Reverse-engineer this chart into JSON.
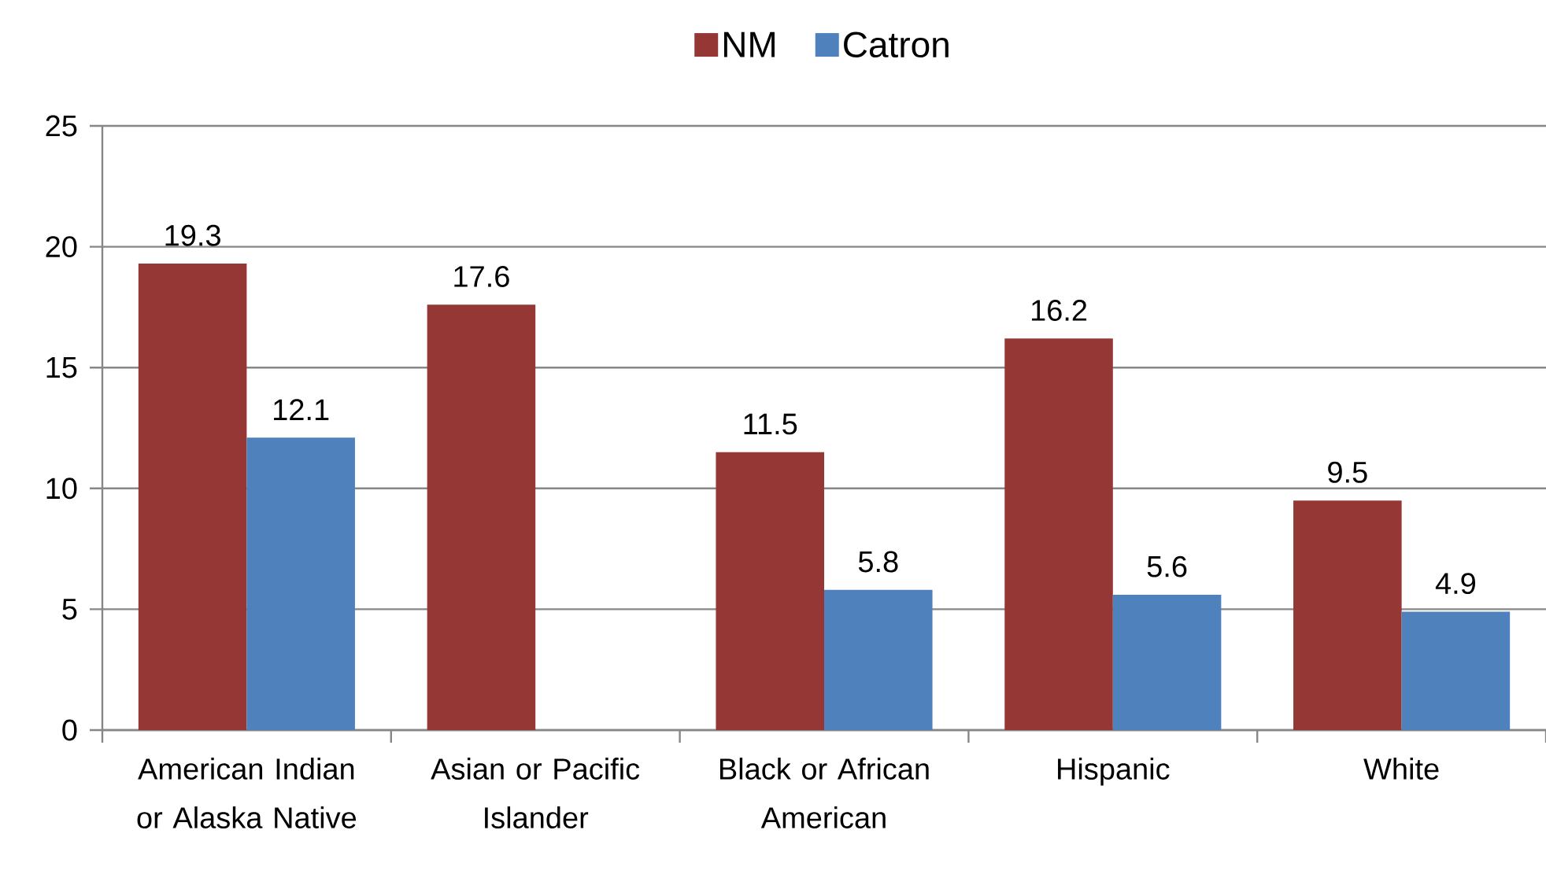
{
  "chart_data": {
    "type": "bar",
    "categories": [
      "American Indian or Alaska Native",
      "Asian or Pacific Islander",
      "Black or African American",
      "Hispanic",
      "White"
    ],
    "series": [
      {
        "name": "NM",
        "color": "#953735",
        "values": [
          19.3,
          17.6,
          11.5,
          16.2,
          9.5
        ]
      },
      {
        "name": "Catron",
        "color": "#4f81bd",
        "values": [
          12.1,
          null,
          5.8,
          5.6,
          4.9
        ]
      }
    ],
    "ylim": [
      0,
      25
    ],
    "yticks": [
      0,
      5,
      10,
      15,
      20,
      25
    ],
    "grid": "y",
    "legend": "top",
    "data_labels": true
  }
}
